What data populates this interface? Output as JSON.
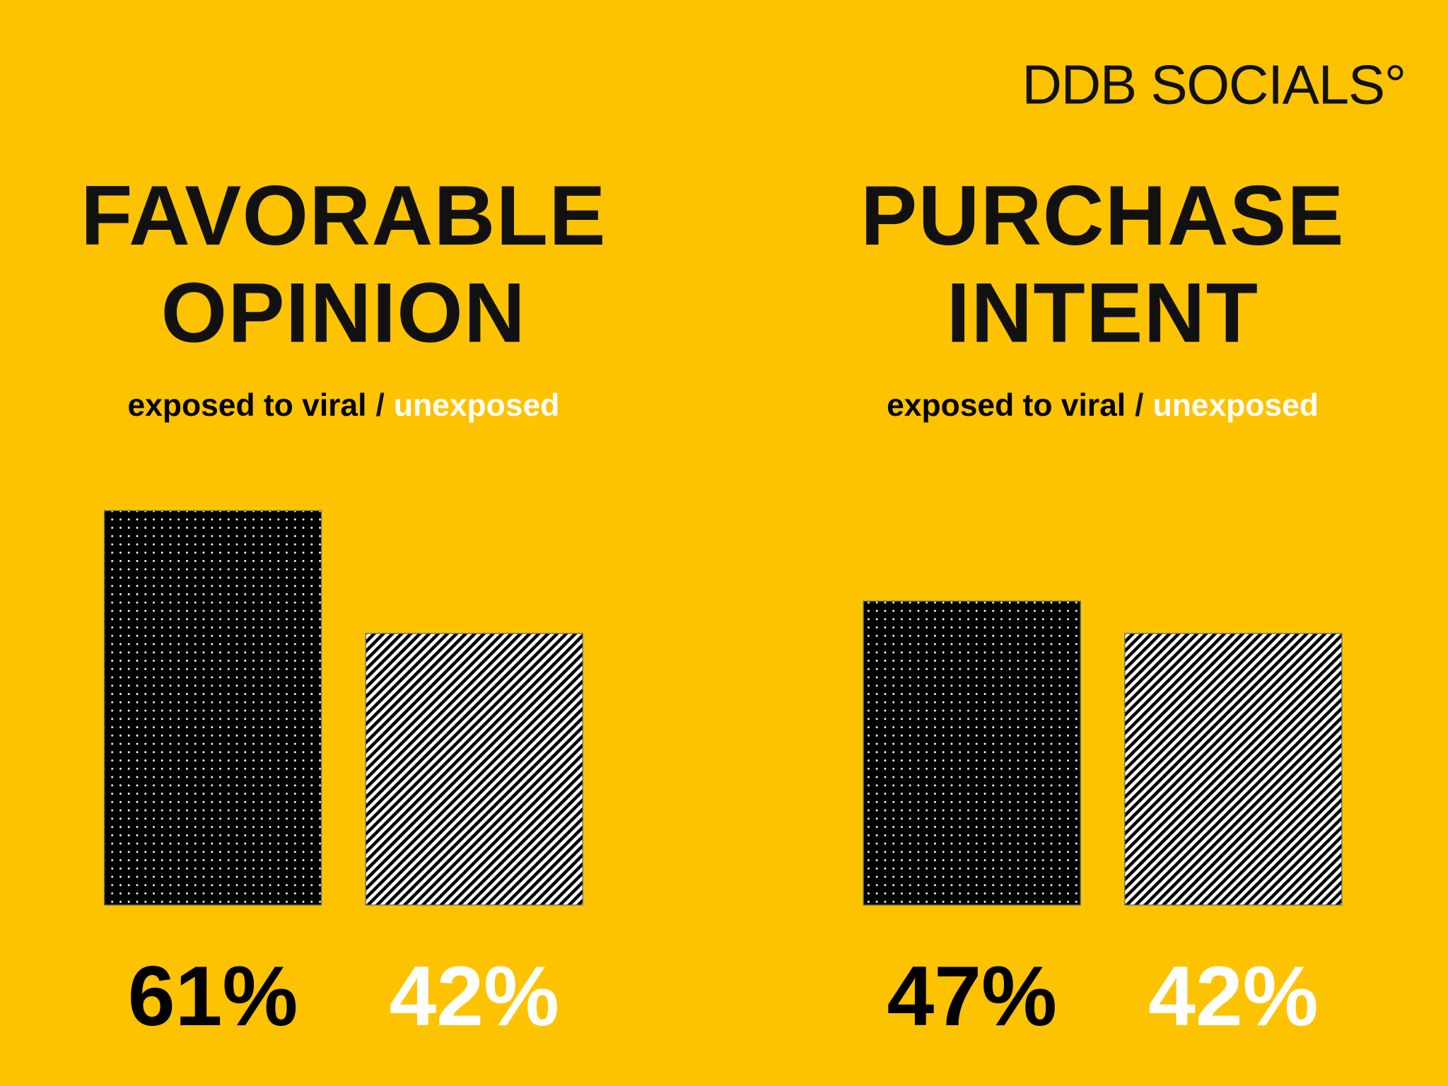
{
  "brand": "DDB SOCIALS°",
  "chart_data": [
    {
      "type": "bar",
      "title_lines": [
        "FAVORABLE",
        "OPINION"
      ],
      "legend_separator": "/",
      "series": [
        {
          "name": "exposed to viral",
          "color": "#000000",
          "values": [
            61
          ],
          "value_labels": [
            "61%"
          ]
        },
        {
          "name": "unexposed",
          "color": "#ffffff",
          "values": [
            42
          ],
          "value_labels": [
            "42%"
          ]
        }
      ]
    },
    {
      "type": "bar",
      "title_lines": [
        "PURCHASE",
        "INTENT"
      ],
      "legend_separator": "/",
      "series": [
        {
          "name": "exposed to viral",
          "color": "#000000",
          "values": [
            47
          ],
          "value_labels": [
            "47%"
          ]
        },
        {
          "name": "unexposed",
          "color": "#ffffff",
          "values": [
            42
          ],
          "value_labels": [
            "42%"
          ]
        }
      ]
    }
  ]
}
